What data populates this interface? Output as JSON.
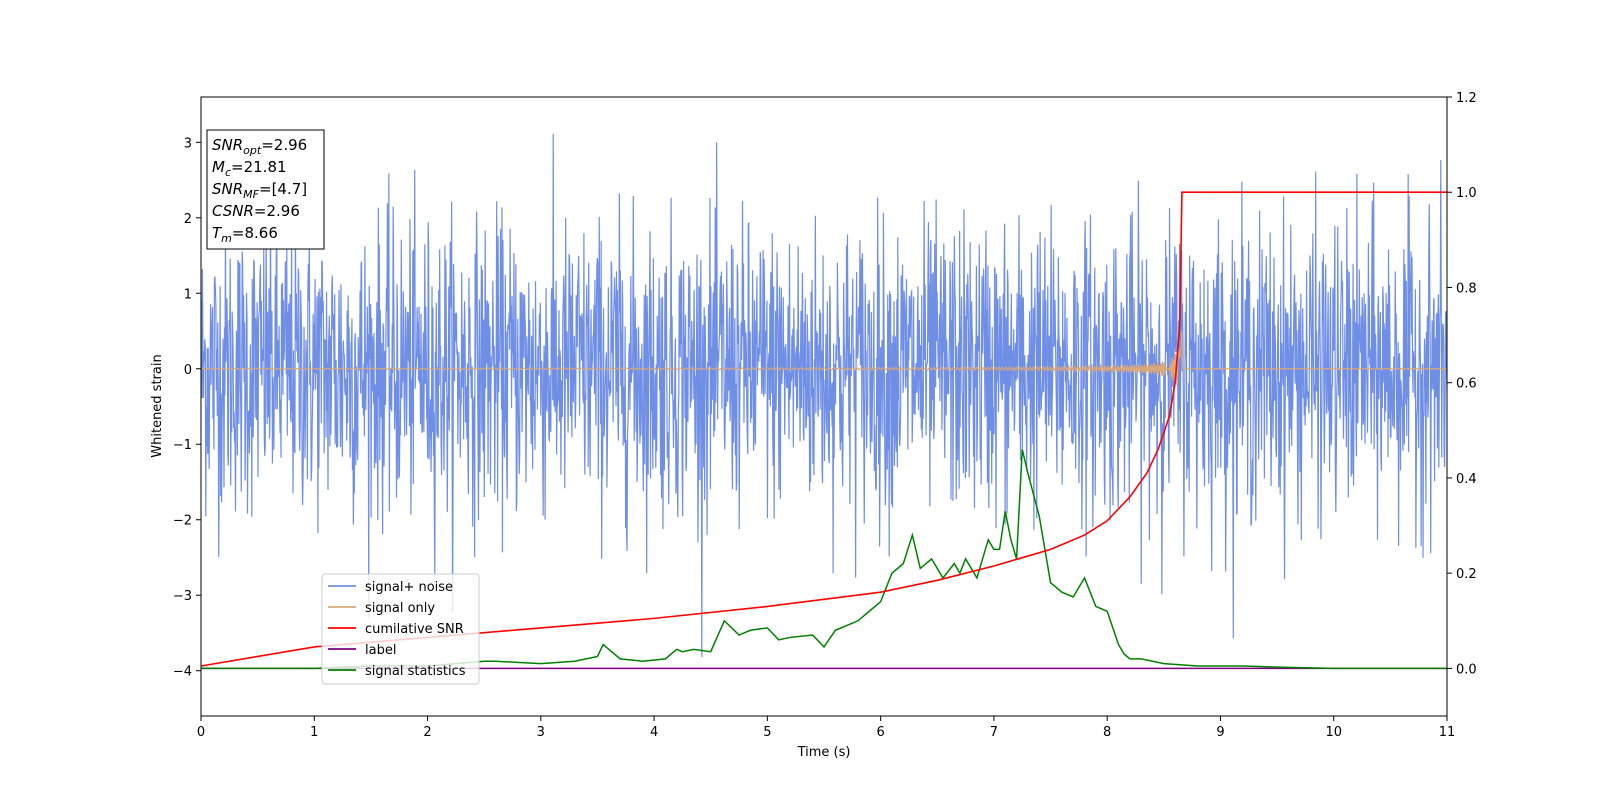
{
  "chart_data": {
    "type": "line",
    "xlabel": "Time (s)",
    "ylabel": "Whitened strain",
    "xlim": [
      0,
      11
    ],
    "ylim_left": [
      -4.6,
      3.6
    ],
    "ylim_right": [
      -0.1,
      1.2
    ],
    "x_ticks": [
      "0",
      "1",
      "2",
      "3",
      "4",
      "5",
      "6",
      "7",
      "8",
      "9",
      "10",
      "11"
    ],
    "y_ticks_left": [
      "−4",
      "−3",
      "−2",
      "−1",
      "0",
      "1",
      "2",
      "3"
    ],
    "y_ticks_right": [
      "0.0",
      "0.2",
      "0.4",
      "0.6",
      "0.8",
      "1.0",
      "1.2"
    ],
    "grid": false,
    "legend_placement": "lower-left",
    "colors": {
      "signal_noise": "#6f8ee6",
      "signal_only": "#d9a878",
      "cumulative_snr": "#ff0000",
      "label": "#800080",
      "signal_statistics": "#008000"
    },
    "info_box": [
      {
        "sym": "SNR",
        "sub": "opt",
        "val": "=2.96"
      },
      {
        "sym": "M",
        "sub": "c",
        "val": "=21.81"
      },
      {
        "sym": "SNR",
        "sub": "MF",
        "val": "=[4.7]"
      },
      {
        "sym": "CSNR",
        "sub": "",
        "val": "=2.96"
      },
      {
        "sym": "T",
        "sub": "m",
        "val": "=8.66"
      }
    ],
    "series": [
      {
        "name": "signal+ noise",
        "axis": "left",
        "description_stats": {
          "x_range": [
            0,
            11
          ],
          "typical_min": -2.0,
          "typical_max": 2.0,
          "peak_max": 3.27,
          "peak_min": -3.85
        }
      },
      {
        "name": "signal only",
        "axis": "left",
        "chirp": {
          "start_amplitude": 0.0,
          "merger_time": 8.66,
          "peak_amplitude": 0.55,
          "min_amplitude": -0.5
        }
      },
      {
        "name": "cumilative SNR",
        "axis": "right",
        "x": [
          0,
          1,
          2,
          3,
          4,
          5,
          6,
          6.5,
          7,
          7.5,
          7.8,
          8,
          8.2,
          8.35,
          8.45,
          8.55,
          8.6,
          8.64,
          8.66,
          11
        ],
        "values": [
          0.005,
          0.045,
          0.065,
          0.085,
          0.105,
          0.13,
          0.16,
          0.185,
          0.215,
          0.25,
          0.28,
          0.31,
          0.36,
          0.41,
          0.46,
          0.53,
          0.6,
          0.72,
          1.0,
          1.0
        ]
      },
      {
        "name": "label",
        "axis": "right",
        "x": [
          0,
          11
        ],
        "values": [
          0,
          0
        ]
      },
      {
        "name": "signal statistics",
        "axis": "right",
        "x": [
          0,
          0.5,
          1,
          1.5,
          2,
          2.5,
          2.6,
          3,
          3.3,
          3.5,
          3.55,
          3.7,
          3.9,
          4.1,
          4.2,
          4.25,
          4.35,
          4.5,
          4.62,
          4.75,
          4.85,
          5.0,
          5.1,
          5.2,
          5.4,
          5.5,
          5.6,
          5.7,
          5.8,
          5.9,
          6.0,
          6.05,
          6.1,
          6.2,
          6.28,
          6.35,
          6.45,
          6.55,
          6.65,
          6.7,
          6.75,
          6.85,
          6.95,
          7.0,
          7.05,
          7.1,
          7.15,
          7.2,
          7.25,
          7.3,
          7.4,
          7.5,
          7.6,
          7.7,
          7.8,
          7.9,
          8.0,
          8.1,
          8.15,
          8.2,
          8.3,
          8.5,
          8.8,
          9.2,
          9.6,
          10,
          11
        ],
        "values": [
          0.0,
          0.0,
          0.0,
          0.005,
          0.005,
          0.015,
          0.015,
          0.01,
          0.015,
          0.025,
          0.05,
          0.02,
          0.015,
          0.02,
          0.04,
          0.035,
          0.04,
          0.035,
          0.1,
          0.07,
          0.08,
          0.085,
          0.06,
          0.065,
          0.07,
          0.045,
          0.08,
          0.09,
          0.1,
          0.12,
          0.14,
          0.17,
          0.2,
          0.22,
          0.28,
          0.21,
          0.23,
          0.19,
          0.22,
          0.2,
          0.23,
          0.19,
          0.27,
          0.25,
          0.25,
          0.33,
          0.27,
          0.23,
          0.46,
          0.41,
          0.32,
          0.18,
          0.16,
          0.15,
          0.19,
          0.13,
          0.12,
          0.05,
          0.03,
          0.02,
          0.02,
          0.01,
          0.005,
          0.005,
          0.002,
          0.0,
          0.0
        ]
      }
    ]
  }
}
